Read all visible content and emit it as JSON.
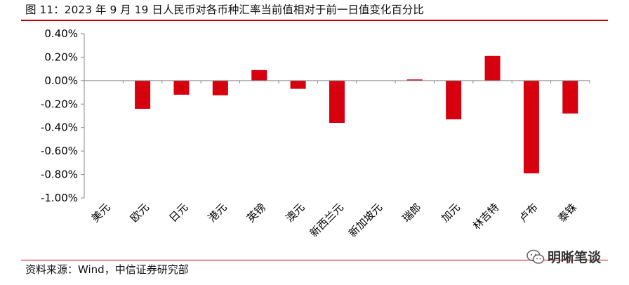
{
  "title": "图 11：2023 年 9 月 19 日人民币对各币种汇率当前值相对于前一日值变化百分比",
  "source": "资料来源：Wind，中信证券研究部",
  "watermark": "明晰笔谈",
  "colors": {
    "bar": "#d7000f",
    "rule": "#c00000",
    "axis": "#888888"
  },
  "chart_data": {
    "type": "bar",
    "title": "",
    "xlabel": "",
    "ylabel": "",
    "categories": [
      "美元",
      "欧元",
      "日元",
      "港元",
      "英镑",
      "澳元",
      "新西兰元",
      "新加坡元",
      "瑞郎",
      "加元",
      "林吉特",
      "卢布",
      "泰铢"
    ],
    "values": [
      0.0,
      -0.24,
      -0.12,
      -0.125,
      0.09,
      -0.07,
      -0.36,
      0.0,
      0.01,
      -0.33,
      0.21,
      -0.79,
      -0.28
    ],
    "ylim": [
      -1.0,
      0.4
    ],
    "yticks": [
      0.4,
      0.2,
      0.0,
      -0.2,
      -0.4,
      -0.6,
      -0.8,
      -1.0
    ],
    "ytick_labels": [
      "0.40%",
      "0.20%",
      "0.00%",
      "-0.20%",
      "-0.40%",
      "-0.60%",
      "-0.80%",
      "-1.00%"
    ],
    "unit": "%",
    "grid": false,
    "legend": "none"
  }
}
